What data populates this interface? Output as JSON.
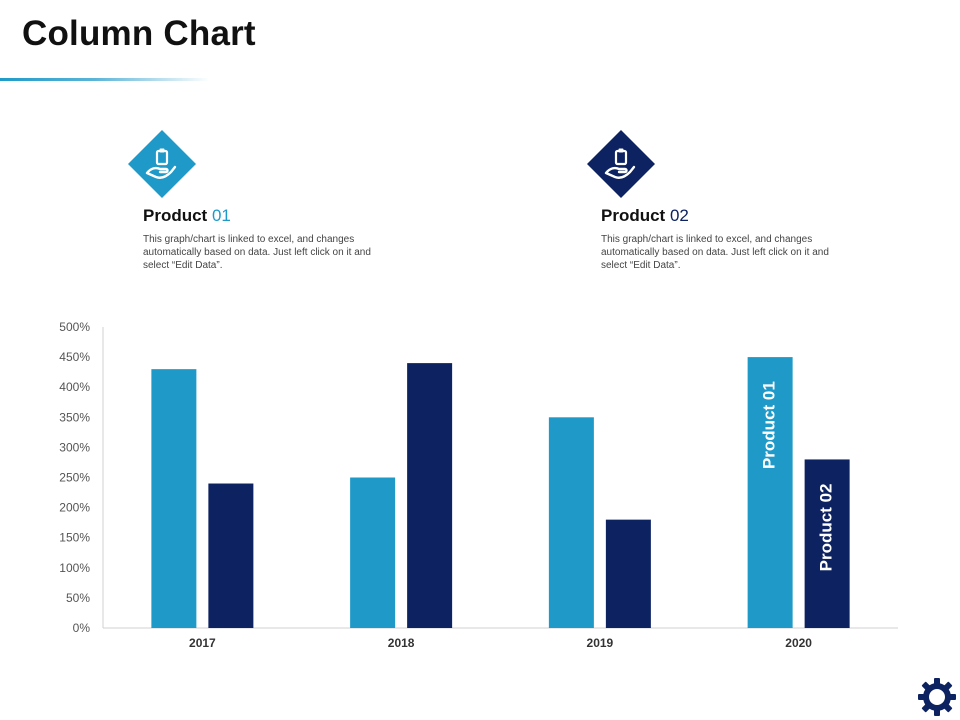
{
  "page": {
    "title": "Column Chart"
  },
  "products": [
    {
      "name": "Product",
      "number": "01",
      "color": "#1f9ac8",
      "icon": "hand-holding-clipboard-icon",
      "description": "This graph/chart is linked to excel, and changes automatically based on data. Just left click on it and select “Edit Data”."
    },
    {
      "name": "Product",
      "number": "02",
      "color": "#0d2260",
      "icon": "hand-holding-clipboard-icon",
      "description": "This graph/chart is linked to excel, and changes automatically based on data. Just left click on it and select “Edit Data”."
    }
  ],
  "chart_data": {
    "type": "bar",
    "title": "",
    "xlabel": "",
    "ylabel": "",
    "categories": [
      "2017",
      "2018",
      "2019",
      "2020"
    ],
    "series": [
      {
        "name": "Product 01",
        "color": "#1f9ac8",
        "values": [
          430,
          250,
          350,
          450
        ]
      },
      {
        "name": "Product 02",
        "color": "#0d2260",
        "values": [
          240,
          440,
          180,
          280
        ]
      }
    ],
    "ylim": [
      0,
      500
    ],
    "yticks": [
      "0%",
      "50%",
      "100%",
      "150%",
      "200%",
      "250%",
      "300%",
      "350%",
      "400%",
      "450%",
      "500%"
    ],
    "grid": false,
    "legend": "inside-last-category-bars",
    "bar_labels": [
      "Product 01",
      "Product 02"
    ]
  },
  "footer": {
    "icon": "gear-icon"
  }
}
